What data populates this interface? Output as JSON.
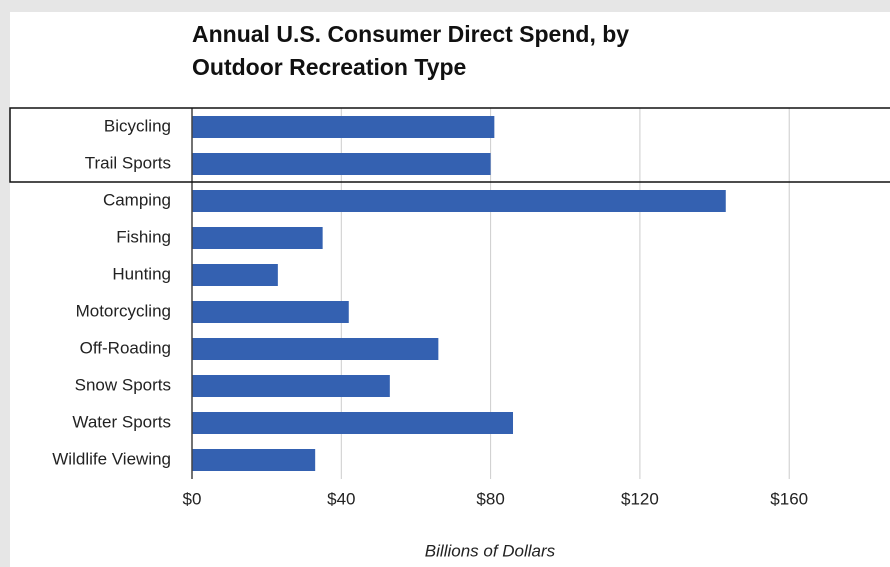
{
  "chart_data": {
    "type": "bar",
    "orientation": "horizontal",
    "title": [
      "Annual U.S. Consumer Direct Spend, by",
      "Outdoor Recreation Type"
    ],
    "x_label": "Billions of Dollars",
    "categories": [
      "Bicycling",
      "Trail Sports",
      "Camping",
      "Fishing",
      "Hunting",
      "Motorcycling",
      "Off-Roading",
      "Snow Sports",
      "Water Sports",
      "Wildlife Viewing"
    ],
    "values": [
      81,
      80,
      143,
      35,
      23,
      42,
      66,
      53,
      86,
      33
    ],
    "color": "#3461b1",
    "xlim": [
      0,
      187
    ],
    "xticks": [
      {
        "value": 0,
        "label": "$0"
      },
      {
        "value": 40,
        "label": "$40"
      },
      {
        "value": 80,
        "label": "$80"
      },
      {
        "value": 120,
        "label": "$120"
      },
      {
        "value": 160,
        "label": "$160"
      }
    ],
    "grid": true
  }
}
